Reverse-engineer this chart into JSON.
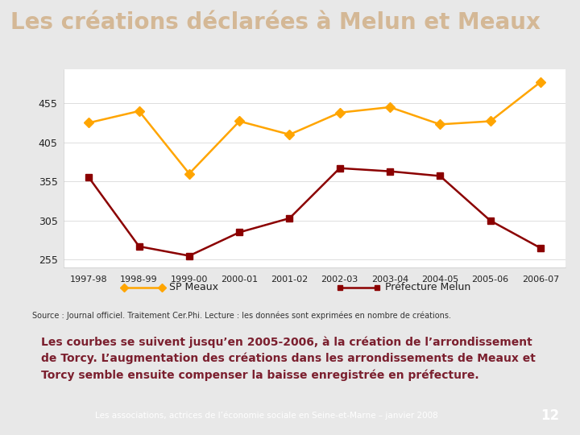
{
  "title": "Les créations déclarées à Melun et Meaux",
  "title_bg": "#7B1F2E",
  "title_color": "#D4B896",
  "categories": [
    "1997-98",
    "1998-99",
    "1999-00",
    "2000-01",
    "2001-02",
    "2002-03",
    "2003-04",
    "2004-05",
    "2005-06",
    "2006-07"
  ],
  "sp_meaux": [
    430,
    445,
    365,
    432,
    415,
    443,
    450,
    428,
    432,
    482
  ],
  "prefecture_melun": [
    360,
    272,
    260,
    290,
    308,
    372,
    368,
    362,
    305,
    270
  ],
  "sp_meaux_color": "#FFA500",
  "prefecture_melun_color": "#8B0000",
  "yticks": [
    255,
    305,
    355,
    405,
    455
  ],
  "ylim": [
    245,
    498
  ],
  "source_text": "Source : Journal officiel. Traitement Cer.Phi. Lecture : les données sont exprimées en nombre de créations.",
  "footnote": "Les associations, actrices de l’économie sociale en Seine-et-Marne – janvier 2008",
  "page_number": "12",
  "annotation_text": "Les courbes se suivent jusqu’en 2005-2006, à la création de l’arrondissement\nde Torcy. L’augmentation des créations dans les arrondissements de Meaux et\nTorcy semble ensuite compenser la baisse enregistrée en préfecture.",
  "chart_bg": "#FFFFFF",
  "slide_bg": "#E8E8E8",
  "footer_bg": "#7B1F2E",
  "footer_color": "#FFFFFF",
  "annot_bg": "#FFFFF0",
  "annot_border": "#8B7000",
  "annot_text_color": "#7B1F2E",
  "legend_sp_meaux": "SP Meaux",
  "legend_prefecture": "Préfecture Melun"
}
